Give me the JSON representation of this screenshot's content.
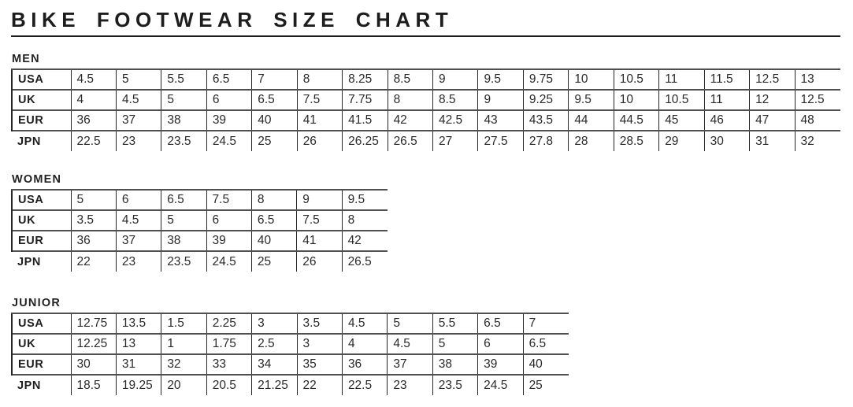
{
  "title": "BIKE FOOTWEAR SIZE CHART",
  "tables": [
    {
      "heading": "MEN",
      "rows": [
        {
          "label": "USA",
          "values": [
            "4.5",
            "5",
            "5.5",
            "6.5",
            "7",
            "8",
            "8.25",
            "8.5",
            "9",
            "9.5",
            "9.75",
            "10",
            "10.5",
            "11",
            "11.5",
            "12.5",
            "13"
          ]
        },
        {
          "label": "UK",
          "values": [
            "4",
            "4.5",
            "5",
            "6",
            "6.5",
            "7.5",
            "7.75",
            "8",
            "8.5",
            "9",
            "9.25",
            "9.5",
            "10",
            "10.5",
            "11",
            "12",
            "12.5"
          ]
        },
        {
          "label": "EUR",
          "values": [
            "36",
            "37",
            "38",
            "39",
            "40",
            "41",
            "41.5",
            "42",
            "42.5",
            "43",
            "43.5",
            "44",
            "44.5",
            "45",
            "46",
            "47",
            "48"
          ]
        },
        {
          "label": "JPN",
          "values": [
            "22.5",
            "23",
            "23.5",
            "24.5",
            "25",
            "26",
            "26.25",
            "26.5",
            "27",
            "27.5",
            "27.8",
            "28",
            "28.5",
            "29",
            "30",
            "31",
            "32"
          ]
        }
      ]
    },
    {
      "heading": "WOMEN",
      "rows": [
        {
          "label": "USA",
          "values": [
            "5",
            "6",
            "6.5",
            "7.5",
            "8",
            "9",
            "9.5"
          ]
        },
        {
          "label": "UK",
          "values": [
            "3.5",
            "4.5",
            "5",
            "6",
            "6.5",
            "7.5",
            "8"
          ]
        },
        {
          "label": "EUR",
          "values": [
            "36",
            "37",
            "38",
            "39",
            "40",
            "41",
            "42"
          ]
        },
        {
          "label": "JPN",
          "values": [
            "22",
            "23",
            "23.5",
            "24.5",
            "25",
            "26",
            "26.5"
          ]
        }
      ]
    },
    {
      "heading": "JUNIOR",
      "rows": [
        {
          "label": "USA",
          "values": [
            "12.75",
            "13.5",
            "1.5",
            "2.25",
            "3",
            "3.5",
            "4.5",
            "5",
            "5.5",
            "6.5",
            "7"
          ]
        },
        {
          "label": "UK",
          "values": [
            "12.25",
            "13",
            "1",
            "1.75",
            "2.5",
            "3",
            "4",
            "4.5",
            "5",
            "6",
            "6.5"
          ]
        },
        {
          "label": "EUR",
          "values": [
            "30",
            "31",
            "32",
            "33",
            "34",
            "35",
            "36",
            "37",
            "38",
            "39",
            "40"
          ]
        },
        {
          "label": "JPN",
          "values": [
            "18.5",
            "19.25",
            "20",
            "20.5",
            "21.25",
            "22",
            "22.5",
            "23",
            "23.5",
            "24.5",
            "25"
          ]
        }
      ]
    }
  ]
}
